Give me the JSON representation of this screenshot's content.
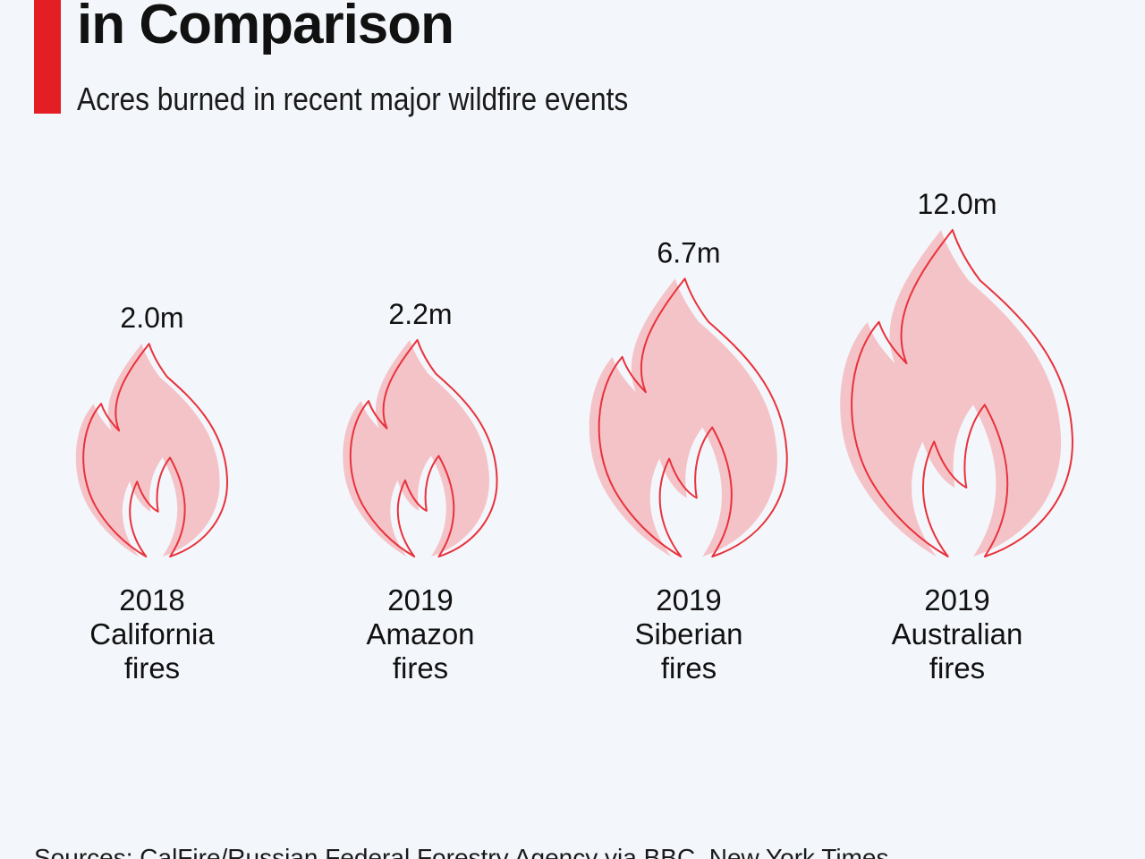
{
  "header": {
    "title": "in Comparison",
    "subtitle": "Acres burned in recent major wildfire events"
  },
  "colors": {
    "accent": "#e31e24",
    "flame_fill": "#f4c3c8",
    "flame_stroke": "#e8323c",
    "background": "#f3f6fa"
  },
  "chart_data": {
    "type": "pictorial-bar",
    "icon": "flame-icon",
    "unit": "acres",
    "categories": [
      [
        "2018",
        "California",
        "fires"
      ],
      [
        "2019",
        "Amazon",
        "fires"
      ],
      [
        "2019",
        "Siberian",
        "fires"
      ],
      [
        "2019",
        "Australian",
        "fires"
      ]
    ],
    "values": [
      2.0,
      2.2,
      6.7,
      12.0
    ],
    "value_labels": [
      "2.0m",
      "2.2m",
      "6.7m",
      "12.0m"
    ]
  },
  "footer": {
    "source": "Sources: CalFire/Russian Federal Forestry Agency via BBC, New York Times"
  }
}
